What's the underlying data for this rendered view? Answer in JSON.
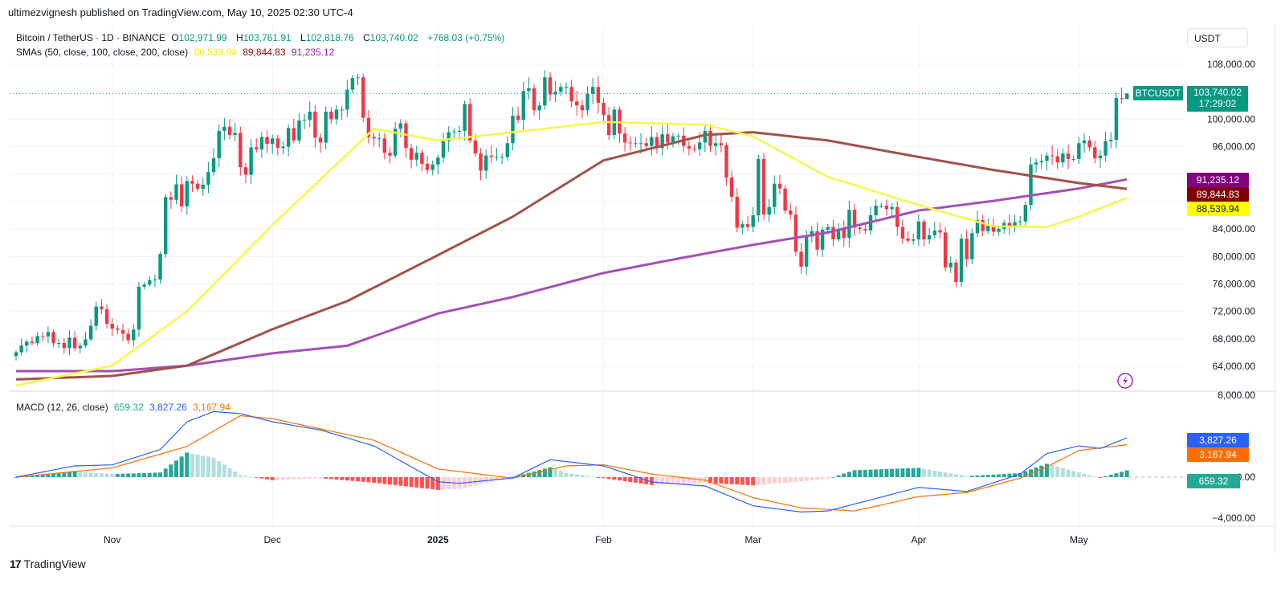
{
  "publisher": "ultimezvignesh published on TradingView.com, May 10, 2025 02:30 UTC-4",
  "legend": {
    "symbol": "Bitcoin / TetherUS · 1D · BINANCE",
    "o_label": "O",
    "o": "102,971.99",
    "h_label": "H",
    "h": "103,761.91",
    "l_label": "L",
    "l": "102,818.76",
    "c_label": "C",
    "c": "103,740.02",
    "change": "+768.03 (+0.75%)",
    "sma_title": "SMAs (50, close, 100, close, 200, close)",
    "sma50": "88,539.94",
    "sma100": "89,844.83",
    "sma200": "91,235.12",
    "macd_title": "MACD (12, 26, close)",
    "macd_hist": "659.32",
    "macd_line": "3,827.26",
    "macd_signal": "3,167.94"
  },
  "currency_button": "USDT",
  "price_tags": {
    "symbol": "BTCUSDT",
    "price": "103,740.02",
    "countdown": "17:29:02",
    "sma200": "91,235.12",
    "sma100": "89,844.83",
    "sma50": "88,539.94",
    "macd_line": "3,827.26",
    "macd_signal": "3,167.94",
    "macd_hist": "659.32"
  },
  "footer": {
    "logo": "17",
    "brand": "TradingView"
  },
  "colors": {
    "up": "#089981",
    "down": "#f23645",
    "sma50": "#f7f74a",
    "sma100": "#a0524a",
    "sma200": "#a350b5",
    "sma50_tag": "#ffff00",
    "sma100_tag": "#800000",
    "sma200_tag": "#800080",
    "macd": "#2962ff",
    "signal": "#ff6d00"
  },
  "chart_data": {
    "type": "candlestick",
    "start_date": "2024-10-14",
    "close": [
      66050,
      67040,
      67600,
      67380,
      68400,
      68360,
      69000,
      67370,
      67400,
      66660,
      68170,
      66640,
      67010,
      67940,
      69900,
      72720,
      72330,
      70200,
      69490,
      69300,
      68750,
      67800,
      69360,
      75600,
      75900,
      76540,
      76650,
      80370,
      88650,
      88260,
      90500,
      87300,
      91000,
      90600,
      89850,
      90460,
      92300,
      94300,
      98300,
      98900,
      97700,
      98000,
      93000,
      91900,
      95900,
      95600,
      97400,
      96400,
      97200,
      95800,
      96000,
      98700,
      96900,
      99800,
      99900,
      101100,
      97300,
      96600,
      101100,
      100000,
      101400,
      101400,
      104300,
      106000,
      106100,
      100200,
      97400,
      97200,
      97200,
      95100,
      94700,
      98600,
      99400,
      95800,
      94100,
      95100,
      93500,
      92600,
      93400,
      94400,
      96800,
      98100,
      98200,
      98300,
      102200,
      96900,
      95000,
      92500,
      94700,
      94500,
      94500,
      94500,
      96500,
      100500,
      99900,
      104100,
      104500,
      101300,
      102000,
      106100,
      103600,
      104000,
      104700,
      104700,
      102600,
      102000,
      101300,
      103700,
      104700,
      102400,
      100600,
      97700,
      101400,
      97900,
      96600,
      96500,
      96500,
      96500,
      96100,
      97400,
      95800,
      97800,
      96600,
      97500,
      97600,
      96100,
      95700,
      95600,
      96600,
      98300,
      96100,
      96500,
      96200,
      91500,
      88700,
      84200,
      84700,
      84300,
      86000,
      94200,
      86100,
      87200,
      90600,
      89900,
      86700,
      86100,
      80700,
      78500,
      82900,
      83700,
      81000,
      83900,
      84300,
      82500,
      84000,
      82700,
      86800,
      84200,
      84000,
      83800,
      86000,
      87400,
      87400,
      86900,
      87200,
      84300,
      82600,
      82300,
      82500,
      85100,
      82500,
      83100,
      83800,
      83500,
      78400,
      79100,
      76300,
      82600,
      79600,
      83400,
      85300,
      83700,
      84500,
      83600,
      84000,
      84900,
      84400,
      85000,
      85100,
      87500,
      93400,
      93700,
      93900,
      94700,
      94600,
      93700,
      95000,
      94200,
      94200,
      96500,
      96900,
      95900,
      94300,
      94700,
      96800,
      97000,
      103100,
      102972,
      103740
    ],
    "last_candle": {
      "open": 102971.99,
      "high": 103761.91,
      "low": 102818.76,
      "close": 103740.02
    },
    "sma50": [
      [
        "2024-10-14",
        61200
      ],
      [
        "2024-11-01",
        64100
      ],
      [
        "2024-11-15",
        72000
      ],
      [
        "2024-12-01",
        84600
      ],
      [
        "2024-12-20",
        98600
      ],
      [
        "2025-01-01",
        96900
      ],
      [
        "2025-01-15",
        98100
      ],
      [
        "2025-02-01",
        99600
      ],
      [
        "2025-02-20",
        99200
      ],
      [
        "2025-03-01",
        97500
      ],
      [
        "2025-03-15",
        91600
      ],
      [
        "2025-04-01",
        87500
      ],
      [
        "2025-04-15",
        84400
      ],
      [
        "2025-04-25",
        84300
      ],
      [
        "2025-05-01",
        85800
      ],
      [
        "2025-05-10",
        88539.94
      ]
    ],
    "sma100": [
      [
        "2024-10-14",
        62100
      ],
      [
        "2024-11-01",
        62600
      ],
      [
        "2024-11-15",
        64100
      ],
      [
        "2024-12-01",
        69400
      ],
      [
        "2024-12-15",
        73500
      ],
      [
        "2025-01-01",
        80200
      ],
      [
        "2025-01-15",
        85800
      ],
      [
        "2025-02-01",
        94000
      ],
      [
        "2025-02-20",
        97700
      ],
      [
        "2025-03-01",
        98100
      ],
      [
        "2025-03-15",
        96900
      ],
      [
        "2025-04-01",
        94500
      ],
      [
        "2025-04-15",
        92600
      ],
      [
        "2025-05-01",
        90700
      ],
      [
        "2025-05-10",
        89844.83
      ]
    ],
    "sma200": [
      [
        "2024-10-14",
        63300
      ],
      [
        "2024-11-01",
        63300
      ],
      [
        "2024-11-15",
        64100
      ],
      [
        "2024-12-01",
        65900
      ],
      [
        "2024-12-15",
        67000
      ],
      [
        "2025-01-01",
        71700
      ],
      [
        "2025-01-15",
        74100
      ],
      [
        "2025-02-01",
        77600
      ],
      [
        "2025-02-15",
        79700
      ],
      [
        "2025-03-01",
        81700
      ],
      [
        "2025-03-15",
        83500
      ],
      [
        "2025-04-01",
        86700
      ],
      [
        "2025-04-15",
        88100
      ],
      [
        "2025-05-01",
        89900
      ],
      [
        "2025-05-10",
        91235.12
      ]
    ],
    "macd": [
      [
        "2024-10-14",
        0
      ],
      [
        "2024-10-25",
        1100
      ],
      [
        "2024-11-01",
        1200
      ],
      [
        "2024-11-10",
        2700
      ],
      [
        "2024-11-15",
        5400
      ],
      [
        "2024-11-20",
        6400
      ],
      [
        "2024-11-25",
        6200
      ],
      [
        "2024-12-01",
        5400
      ],
      [
        "2024-12-10",
        4600
      ],
      [
        "2024-12-20",
        3050
      ],
      [
        "2025-01-01",
        -450
      ],
      [
        "2025-01-05",
        -600
      ],
      [
        "2025-01-15",
        -80
      ],
      [
        "2025-01-22",
        1700
      ],
      [
        "2025-02-01",
        1100
      ],
      [
        "2025-02-10",
        -470
      ],
      [
        "2025-02-20",
        -860
      ],
      [
        "2025-03-01",
        -2800
      ],
      [
        "2025-03-10",
        -3400
      ],
      [
        "2025-03-15",
        -3300
      ],
      [
        "2025-04-01",
        -1000
      ],
      [
        "2025-04-10",
        -1400
      ],
      [
        "2025-04-20",
        300
      ],
      [
        "2025-04-25",
        2300
      ],
      [
        "2025-05-01",
        3050
      ],
      [
        "2025-05-05",
        2800
      ],
      [
        "2025-05-10",
        3827.26
      ]
    ],
    "signal": [
      [
        "2024-10-14",
        0
      ],
      [
        "2024-11-01",
        900
      ],
      [
        "2024-11-15",
        3000
      ],
      [
        "2024-11-25",
        6000
      ],
      [
        "2024-12-01",
        5700
      ],
      [
        "2024-12-20",
        3600
      ],
      [
        "2025-01-01",
        800
      ],
      [
        "2025-01-15",
        -100
      ],
      [
        "2025-01-25",
        1100
      ],
      [
        "2025-02-01",
        1200
      ],
      [
        "2025-02-10",
        300
      ],
      [
        "2025-02-20",
        -300
      ],
      [
        "2025-03-01",
        -2000
      ],
      [
        "2025-03-10",
        -3000
      ],
      [
        "2025-03-20",
        -3300
      ],
      [
        "2025-04-01",
        -1900
      ],
      [
        "2025-04-10",
        -1500
      ],
      [
        "2025-04-20",
        -100
      ],
      [
        "2025-04-25",
        1000
      ],
      [
        "2025-05-01",
        2600
      ],
      [
        "2025-05-10",
        3167.94
      ]
    ],
    "price_axis": {
      "ticks": [
        "108,000.00",
        "100,000.00",
        "96,000.00",
        "84,000.00",
        "80,000.00",
        "76,000.00",
        "72,000.00",
        "68,000.00",
        "64,000.00"
      ],
      "tick_values": [
        108000,
        100000,
        96000,
        84000,
        80000,
        76000,
        72000,
        68000,
        64000
      ],
      "range": [
        60000,
        110000
      ]
    },
    "macd_axis": {
      "ticks": [
        "8,000.00",
        "0.00",
        "−4,000.00"
      ],
      "tick_values": [
        8000,
        0,
        -4000
      ]
    },
    "x_ticks": [
      {
        "label": "Nov",
        "date": "2024-11-01"
      },
      {
        "label": "Dec",
        "date": "2024-12-01"
      },
      {
        "label": "2025",
        "date": "2025-01-01"
      },
      {
        "label": "Feb",
        "date": "2025-02-01"
      },
      {
        "label": "Mar",
        "date": "2025-03-01"
      },
      {
        "label": "Apr",
        "date": "2025-04-01"
      },
      {
        "label": "May",
        "date": "2025-05-01"
      }
    ],
    "current_price": 103740.02
  }
}
